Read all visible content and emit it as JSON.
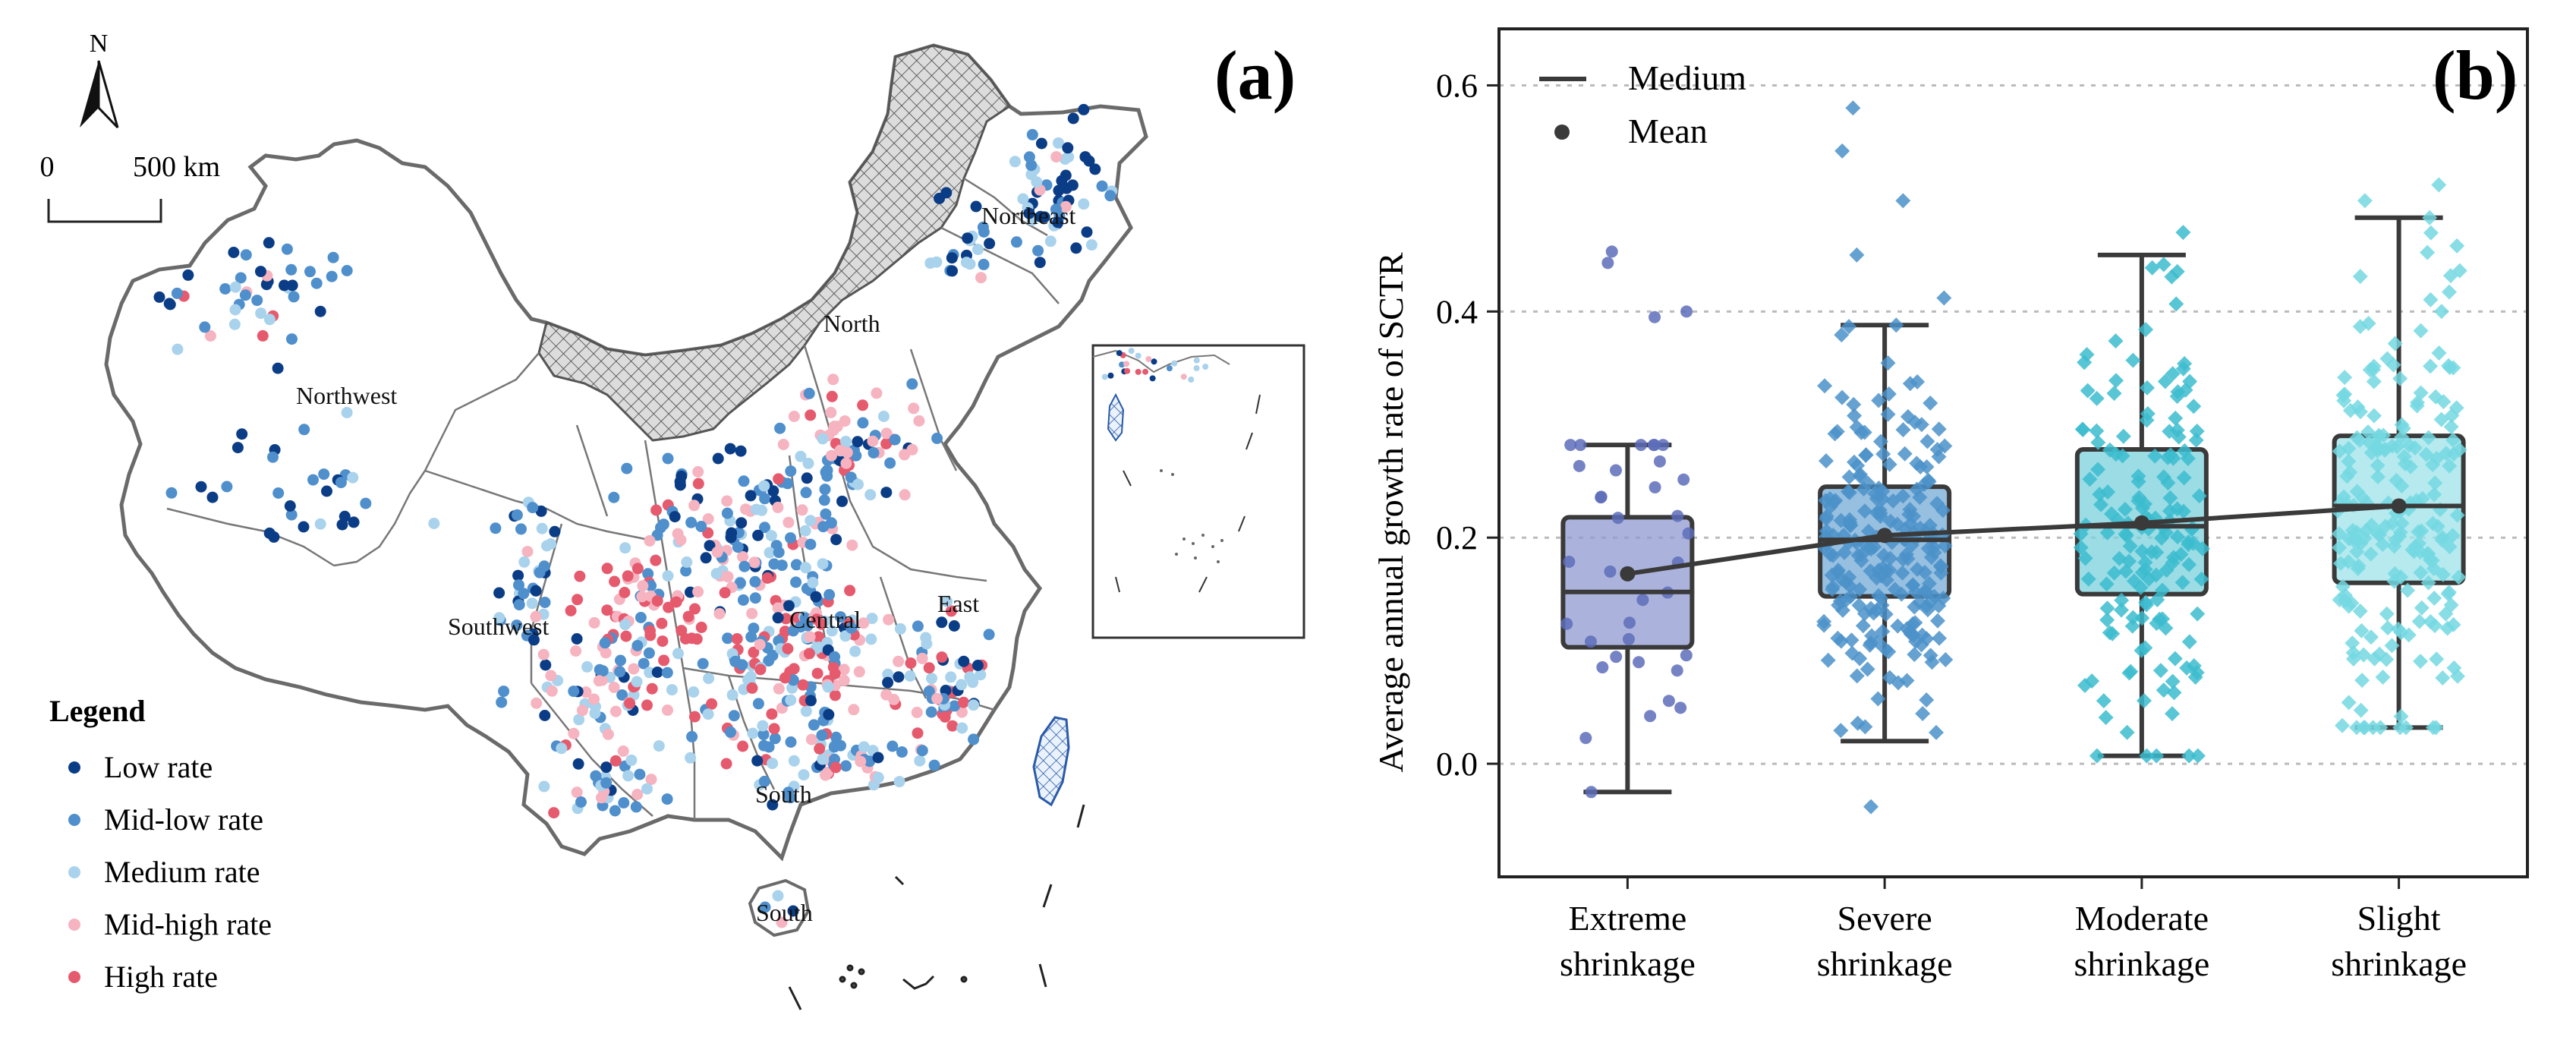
{
  "panel_a": {
    "label": "(a)",
    "north": "N",
    "scale": {
      "zero": "0",
      "distance": "500 km"
    },
    "regions": [
      "Northwest",
      "North",
      "Northeast",
      "Southwest",
      "Central",
      "East",
      "South",
      "South"
    ],
    "legend": {
      "title": "Legend",
      "items": [
        {
          "label": "Low rate",
          "color": "#0b3d86"
        },
        {
          "label": "Mid-low rate",
          "color": "#4f8fcc"
        },
        {
          "label": "Medium rate",
          "color": "#a9d2ec"
        },
        {
          "label": "Mid-high rate",
          "color": "#f6b3c0"
        },
        {
          "label": "High rate",
          "color": "#e65a6e"
        }
      ]
    },
    "colors": {
      "boundary": "#6a6a6a",
      "hatch": "#555555",
      "taiwan_hatch": "#2a5aa8"
    }
  },
  "chart_data": {
    "type": "box",
    "panel_label": "(b)",
    "ylabel": "Average annual growth rate of SCTR",
    "xlabel": "",
    "ylim": [
      -0.1,
      0.65
    ],
    "yticks": [
      0.0,
      0.2,
      0.4,
      0.6
    ],
    "ytick_labels": [
      "0.0",
      "0.2",
      "0.4",
      "0.6"
    ],
    "grid": true,
    "legend": [
      {
        "label": "Medium",
        "marker": "line"
      },
      {
        "label": "Mean",
        "marker": "dot"
      }
    ],
    "legend_position": "top-left",
    "categories": [
      {
        "line1": "Extreme",
        "line2": "shrinkage"
      },
      {
        "line1": "Severe",
        "line2": "shrinkage"
      },
      {
        "line1": "Moderate",
        "line2": "shrinkage"
      },
      {
        "line1": "Slight",
        "line2": "shrinkage"
      }
    ],
    "boxes": [
      {
        "name": "Extreme shrinkage",
        "whisker_low": -0.025,
        "q1": 0.103,
        "median": 0.152,
        "q3": 0.218,
        "whisker_high": 0.282,
        "mean": 0.168,
        "fill": "#8f99d2",
        "point_color": "#5d6dba",
        "n": 35,
        "outliers": [
          0.395,
          0.4,
          0.443,
          0.453
        ]
      },
      {
        "name": "Severe shrinkage",
        "whisker_low": 0.02,
        "q1": 0.148,
        "median": 0.198,
        "q3": 0.245,
        "whisker_high": 0.388,
        "mean": 0.202,
        "fill": "#74a9d6",
        "point_color": "#4b92c9",
        "n": 230,
        "outliers": [
          -0.038,
          0.412,
          0.45,
          0.498,
          0.542,
          0.58
        ]
      },
      {
        "name": "Moderate shrinkage",
        "whisker_low": 0.007,
        "q1": 0.15,
        "median": 0.21,
        "q3": 0.278,
        "whisker_high": 0.45,
        "mean": 0.213,
        "fill": "#7ad0dc",
        "point_color": "#3cbccf",
        "n": 160,
        "outliers": [
          0.47
        ]
      },
      {
        "name": "Slight shrinkage",
        "whisker_low": 0.032,
        "q1": 0.16,
        "median": 0.228,
        "q3": 0.29,
        "whisker_high": 0.483,
        "mean": 0.228,
        "fill": "#9ee3ea",
        "point_color": "#74d8e2",
        "n": 210,
        "outliers": [
          0.498,
          0.512
        ]
      }
    ],
    "colors": {
      "box_line": "#3a3a3a",
      "grid": "#bbbbbb",
      "mean_line": "#3a3a3a"
    }
  }
}
